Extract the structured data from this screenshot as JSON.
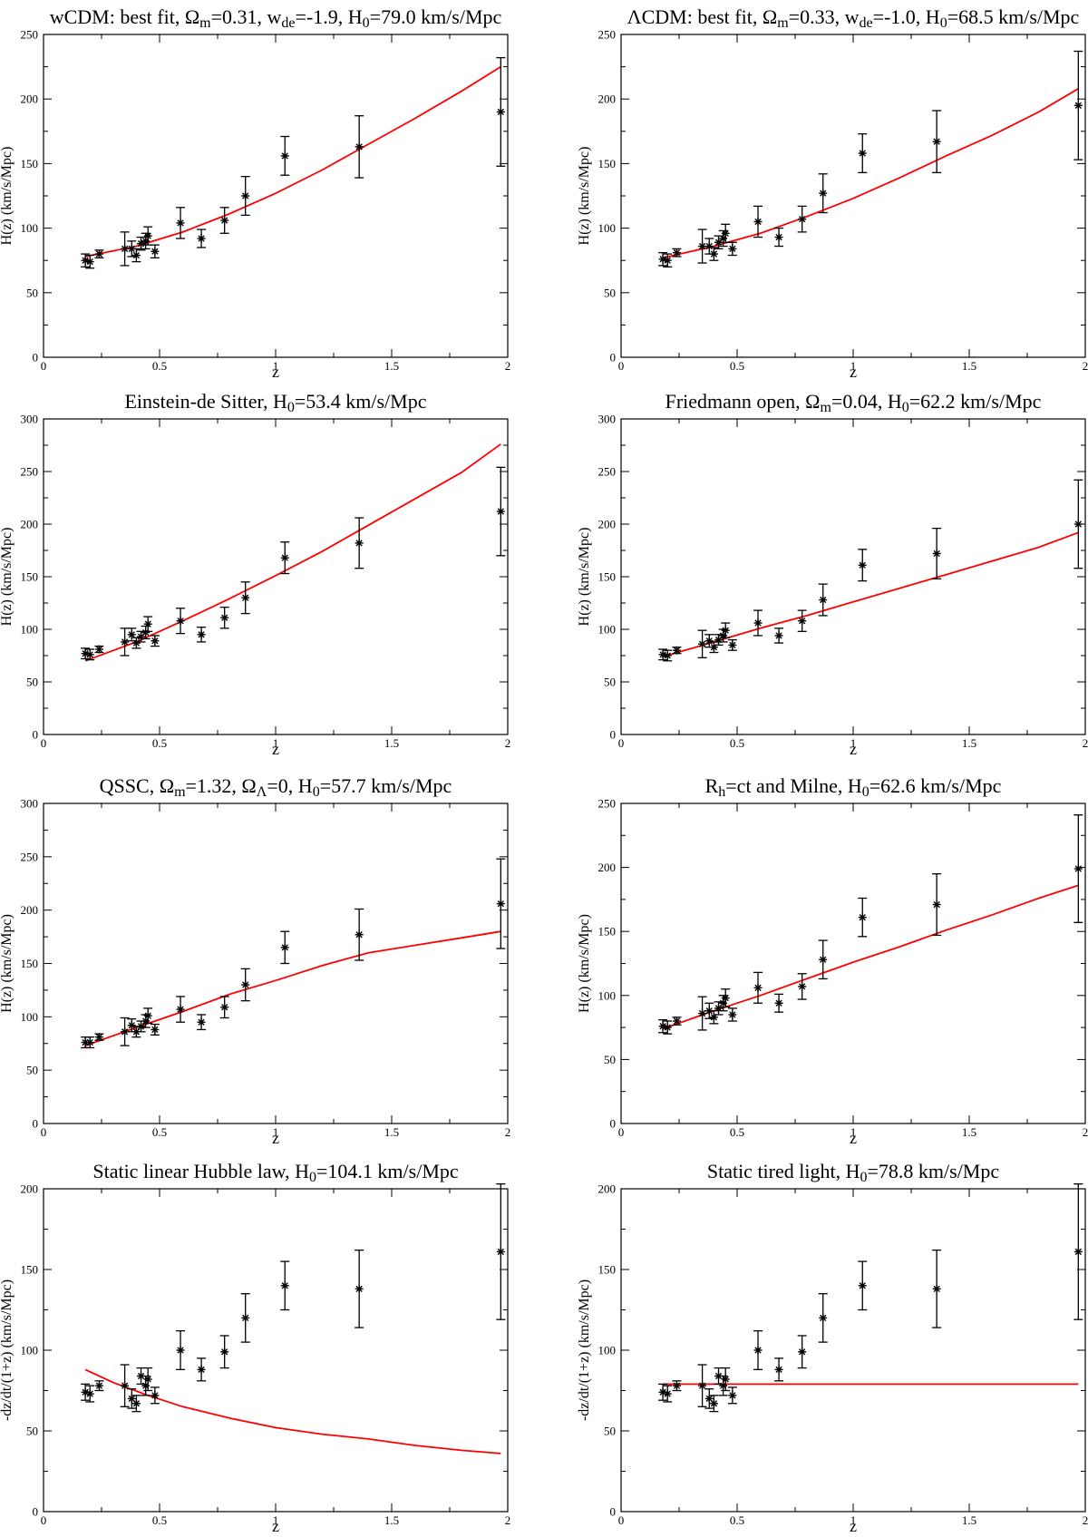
{
  "colors": {
    "model": "#ff0000",
    "data": "#000000",
    "axes": "#000000"
  },
  "chart_data": [
    {
      "type": "scatter",
      "title": "wCDM: best fit, Ωm=0.31, wde=-1.9, H0=79.0 km/s/Mpc",
      "title_parts": [
        [
          "wCDM: best fit, Ω",
          ""
        ],
        [
          "m",
          "sub"
        ],
        [
          "=0.31, w",
          ""
        ],
        [
          "de",
          "sub"
        ],
        [
          "=-1.9, H",
          ""
        ],
        [
          "0",
          "sub"
        ],
        [
          "=79.0 km/s/Mpc",
          ""
        ]
      ],
      "xlabel": "z",
      "ylabel": "H(z) (km/s/Mpc)",
      "xlim": [
        0,
        2
      ],
      "ylim": [
        0,
        250
      ],
      "xticks": [
        0,
        0.5,
        1,
        1.5,
        2
      ],
      "xtick_labels": [
        "0",
        "0.5",
        "1",
        "1.5",
        "2"
      ],
      "yticks": [
        0,
        50,
        100,
        150,
        200,
        250
      ],
      "ytick_labels": [
        "0",
        "50",
        "100",
        "150",
        "200",
        "250"
      ],
      "series": [
        {
          "name": "data",
          "x": [
            0.18,
            0.2,
            0.24,
            0.35,
            0.38,
            0.4,
            0.42,
            0.44,
            0.45,
            0.48,
            0.59,
            0.68,
            0.78,
            0.87,
            1.04,
            1.36,
            1.97
          ],
          "y": [
            75,
            74,
            80,
            84,
            84,
            79,
            88,
            90,
            94,
            82,
            104,
            92,
            106,
            125,
            156,
            163,
            190
          ],
          "err": [
            5,
            5,
            3,
            13,
            6,
            5,
            5,
            6,
            7,
            5,
            12,
            7,
            10,
            15,
            15,
            24,
            42
          ]
        },
        {
          "name": "model",
          "x": [
            0.18,
            0.4,
            0.6,
            0.8,
            1.0,
            1.2,
            1.4,
            1.6,
            1.8,
            1.97
          ],
          "y": [
            78,
            86,
            97,
            111,
            127,
            145,
            165,
            185,
            206,
            225
          ]
        }
      ]
    },
    {
      "type": "scatter",
      "title": "ΛCDM: best fit, Ωm=0.33, wde=-1.0, H0=68.5 km/s/Mpc",
      "title_parts": [
        [
          "ΛCDM: best fit, Ω",
          ""
        ],
        [
          "m",
          "sub"
        ],
        [
          "=0.33, w",
          ""
        ],
        [
          "de",
          "sub"
        ],
        [
          "=-1.0, H",
          ""
        ],
        [
          "0",
          "sub"
        ],
        [
          "=68.5 km/s/Mpc",
          ""
        ]
      ],
      "xlabel": "z",
      "ylabel": "H(z) (km/s/Mpc)",
      "xlim": [
        0,
        2
      ],
      "ylim": [
        0,
        250
      ],
      "xticks": [
        0,
        0.5,
        1,
        1.5,
        2
      ],
      "xtick_labels": [
        "0",
        "0.5",
        "1",
        "1.5",
        "2"
      ],
      "yticks": [
        0,
        50,
        100,
        150,
        200,
        250
      ],
      "ytick_labels": [
        "0",
        "50",
        "100",
        "150",
        "200",
        "250"
      ],
      "series": [
        {
          "name": "data",
          "x": [
            0.18,
            0.2,
            0.24,
            0.35,
            0.38,
            0.4,
            0.42,
            0.44,
            0.45,
            0.48,
            0.59,
            0.68,
            0.78,
            0.87,
            1.04,
            1.36,
            1.97
          ],
          "y": [
            76,
            75,
            81,
            86,
            86,
            80,
            89,
            92,
            96,
            84,
            105,
            93,
            107,
            127,
            158,
            167,
            195
          ],
          "err": [
            5,
            5,
            3,
            13,
            6,
            5,
            5,
            6,
            7,
            5,
            12,
            7,
            10,
            15,
            15,
            24,
            42
          ]
        },
        {
          "name": "model",
          "x": [
            0.18,
            0.4,
            0.6,
            0.8,
            1.0,
            1.2,
            1.4,
            1.6,
            1.8,
            1.97
          ],
          "y": [
            77,
            86,
            96,
            109,
            123,
            139,
            156,
            172,
            190,
            208
          ]
        }
      ]
    },
    {
      "type": "scatter",
      "title": "Einstein-de Sitter, H0=53.4 km/s/Mpc",
      "title_parts": [
        [
          "Einstein-de Sitter, H",
          ""
        ],
        [
          "0",
          "sub"
        ],
        [
          "=53.4 km/s/Mpc",
          ""
        ]
      ],
      "xlabel": "z",
      "ylabel": "H(z) (km/s/Mpc)",
      "xlim": [
        0,
        2
      ],
      "ylim": [
        0,
        300
      ],
      "xticks": [
        0,
        0.5,
        1,
        1.5,
        2
      ],
      "xtick_labels": [
        "0",
        "0.5",
        "1",
        "1.5",
        "2"
      ],
      "yticks": [
        0,
        50,
        100,
        150,
        200,
        250,
        300
      ],
      "ytick_labels": [
        "0",
        "50",
        "100",
        "150",
        "200",
        "250",
        "300"
      ],
      "series": [
        {
          "name": "data",
          "x": [
            0.18,
            0.2,
            0.24,
            0.35,
            0.38,
            0.4,
            0.42,
            0.44,
            0.45,
            0.48,
            0.59,
            0.68,
            0.78,
            0.87,
            1.04,
            1.36,
            1.97
          ],
          "y": [
            77,
            76,
            81,
            88,
            95,
            87,
            93,
            97,
            105,
            89,
            108,
            95,
            111,
            130,
            168,
            182,
            212
          ],
          "err": [
            5,
            5,
            3,
            13,
            6,
            5,
            5,
            6,
            7,
            5,
            12,
            7,
            10,
            15,
            15,
            24,
            42
          ]
        },
        {
          "name": "model",
          "x": [
            0.18,
            0.4,
            0.6,
            0.8,
            1.0,
            1.2,
            1.4,
            1.6,
            1.8,
            1.97
          ],
          "y": [
            70,
            88,
            108,
            129,
            151,
            174,
            199,
            224,
            249,
            276
          ]
        }
      ]
    },
    {
      "type": "scatter",
      "title": "Friedmann open, Ωm=0.04, H0=62.2 km/s/Mpc",
      "title_parts": [
        [
          "Friedmann open, Ω",
          ""
        ],
        [
          "m",
          "sub"
        ],
        [
          "=0.04, H",
          ""
        ],
        [
          "0",
          "sub"
        ],
        [
          "=62.2 km/s/Mpc",
          ""
        ]
      ],
      "xlabel": "z",
      "ylabel": "H(z) (km/s/Mpc)",
      "xlim": [
        0,
        2
      ],
      "ylim": [
        0,
        300
      ],
      "xticks": [
        0,
        0.5,
        1,
        1.5,
        2
      ],
      "xtick_labels": [
        "0",
        "0.5",
        "1",
        "1.5",
        "2"
      ],
      "yticks": [
        0,
        50,
        100,
        150,
        200,
        250,
        300
      ],
      "ytick_labels": [
        "0",
        "50",
        "100",
        "150",
        "200",
        "250",
        "300"
      ],
      "series": [
        {
          "name": "data",
          "x": [
            0.18,
            0.2,
            0.24,
            0.35,
            0.38,
            0.4,
            0.42,
            0.44,
            0.45,
            0.48,
            0.59,
            0.68,
            0.78,
            0.87,
            1.04,
            1.36,
            1.97
          ],
          "y": [
            76,
            75,
            80,
            86,
            89,
            83,
            90,
            94,
            99,
            85,
            106,
            94,
            108,
            128,
            161,
            172,
            200
          ],
          "err": [
            5,
            5,
            3,
            13,
            6,
            5,
            5,
            6,
            7,
            5,
            12,
            7,
            10,
            15,
            15,
            24,
            42
          ]
        },
        {
          "name": "model",
          "x": [
            0.18,
            0.4,
            0.6,
            0.8,
            1.0,
            1.2,
            1.4,
            1.6,
            1.8,
            1.97
          ],
          "y": [
            74,
            88,
            101,
            113,
            126,
            139,
            152,
            165,
            178,
            192
          ]
        }
      ]
    },
    {
      "type": "scatter",
      "title": "QSSC, Ωm=1.32, ΩΛ=0, H0=57.7 km/s/Mpc",
      "title_parts": [
        [
          "QSSC, Ω",
          ""
        ],
        [
          "m",
          "sub"
        ],
        [
          "=1.32, Ω",
          ""
        ],
        [
          "Λ",
          "sub"
        ],
        [
          "=0, H",
          ""
        ],
        [
          "0",
          "sub"
        ],
        [
          "=57.7 km/s/Mpc",
          ""
        ]
      ],
      "xlabel": "z",
      "ylabel": "H(z) (km/s/Mpc)",
      "xlim": [
        0,
        2
      ],
      "ylim": [
        0,
        300
      ],
      "xticks": [
        0,
        0.5,
        1,
        1.5,
        2
      ],
      "xtick_labels": [
        "0",
        "0.5",
        "1",
        "1.5",
        "2"
      ],
      "yticks": [
        0,
        50,
        100,
        150,
        200,
        250,
        300
      ],
      "ytick_labels": [
        "0",
        "50",
        "100",
        "150",
        "200",
        "250",
        "300"
      ],
      "series": [
        {
          "name": "data",
          "x": [
            0.18,
            0.2,
            0.24,
            0.35,
            0.38,
            0.4,
            0.42,
            0.44,
            0.45,
            0.48,
            0.59,
            0.68,
            0.78,
            0.87,
            1.04,
            1.36,
            1.97
          ],
          "y": [
            76,
            76,
            81,
            86,
            92,
            86,
            91,
            96,
            101,
            88,
            107,
            95,
            109,
            130,
            165,
            177,
            206
          ],
          "err": [
            5,
            5,
            3,
            13,
            6,
            5,
            5,
            6,
            7,
            5,
            12,
            7,
            10,
            15,
            15,
            24,
            42
          ]
        },
        {
          "name": "model",
          "x": [
            0.18,
            0.4,
            0.6,
            0.8,
            1.0,
            1.2,
            1.4,
            1.6,
            1.8,
            1.97
          ],
          "y": [
            73,
            90,
            105,
            121,
            134,
            148,
            160,
            167,
            174,
            180
          ]
        }
      ]
    },
    {
      "type": "scatter",
      "title": "Rh=ct and Milne, H0=62.6 km/s/Mpc",
      "title_parts": [
        [
          "R",
          ""
        ],
        [
          "h",
          "sub"
        ],
        [
          "=ct and Milne, H",
          ""
        ],
        [
          "0",
          "sub"
        ],
        [
          "=62.6 km/s/Mpc",
          ""
        ]
      ],
      "xlabel": "z",
      "ylabel": "H(z) (km/s/Mpc)",
      "xlim": [
        0,
        2
      ],
      "ylim": [
        0,
        250
      ],
      "xticks": [
        0,
        0.5,
        1,
        1.5,
        2
      ],
      "xtick_labels": [
        "0",
        "0.5",
        "1",
        "1.5",
        "2"
      ],
      "yticks": [
        0,
        50,
        100,
        150,
        200,
        250
      ],
      "ytick_labels": [
        "0",
        "50",
        "100",
        "150",
        "200",
        "250"
      ],
      "series": [
        {
          "name": "data",
          "x": [
            0.18,
            0.2,
            0.24,
            0.35,
            0.38,
            0.4,
            0.42,
            0.44,
            0.45,
            0.48,
            0.59,
            0.68,
            0.78,
            0.87,
            1.04,
            1.36,
            1.97
          ],
          "y": [
            76,
            75,
            80,
            86,
            88,
            83,
            90,
            94,
            98,
            85,
            106,
            94,
            107,
            128,
            161,
            171,
            199
          ],
          "err": [
            5,
            5,
            3,
            13,
            6,
            5,
            5,
            6,
            7,
            5,
            12,
            7,
            10,
            15,
            15,
            24,
            42
          ]
        },
        {
          "name": "model",
          "x": [
            0.18,
            0.4,
            0.6,
            0.8,
            1.0,
            1.2,
            1.4,
            1.6,
            1.8,
            1.97
          ],
          "y": [
            74,
            88,
            100,
            113,
            126,
            138,
            151,
            163,
            176,
            186
          ]
        }
      ]
    },
    {
      "type": "scatter",
      "title": "Static linear Hubble law, H0=104.1 km/s/Mpc",
      "title_parts": [
        [
          "Static linear Hubble law, H",
          ""
        ],
        [
          "0",
          "sub"
        ],
        [
          "=104.1 km/s/Mpc",
          ""
        ]
      ],
      "xlabel": "z",
      "ylabel": "-dz/dt/(1+z) (km/s/Mpc)",
      "xlim": [
        0,
        2
      ],
      "ylim": [
        0,
        200
      ],
      "xticks": [
        0,
        0.5,
        1,
        1.5,
        2
      ],
      "xtick_labels": [
        "0",
        "0.5",
        "1",
        "1.5",
        "2"
      ],
      "yticks": [
        0,
        50,
        100,
        150,
        200
      ],
      "ytick_labels": [
        "0",
        "50",
        "100",
        "150",
        "200"
      ],
      "series": [
        {
          "name": "data",
          "x": [
            0.18,
            0.2,
            0.24,
            0.35,
            0.38,
            0.4,
            0.42,
            0.44,
            0.45,
            0.48,
            0.59,
            0.68,
            0.78,
            0.87,
            1.04,
            1.36,
            1.97
          ],
          "y": [
            74,
            73,
            78,
            78,
            70,
            67,
            84,
            78,
            82,
            72,
            100,
            88,
            99,
            120,
            140,
            138,
            161
          ],
          "err": [
            5,
            5,
            3,
            13,
            6,
            5,
            5,
            6,
            7,
            5,
            12,
            7,
            10,
            15,
            15,
            24,
            42
          ]
        },
        {
          "name": "model",
          "x": [
            0.18,
            0.3,
            0.45,
            0.6,
            0.8,
            1.0,
            1.2,
            1.4,
            1.6,
            1.8,
            1.97
          ],
          "y": [
            88,
            80,
            72,
            65,
            58,
            52,
            48,
            45,
            41,
            38,
            36
          ]
        }
      ]
    },
    {
      "type": "scatter",
      "title": "Static tired light, H0=78.8 km/s/Mpc",
      "title_parts": [
        [
          "Static tired light, H",
          ""
        ],
        [
          "0",
          "sub"
        ],
        [
          "=78.8 km/s/Mpc",
          ""
        ]
      ],
      "xlabel": "z",
      "ylabel": "-dz/dt/(1+z) (km/s/Mpc)",
      "xlim": [
        0,
        2
      ],
      "ylim": [
        0,
        200
      ],
      "xticks": [
        0,
        0.5,
        1,
        1.5,
        2
      ],
      "xtick_labels": [
        "0",
        "0.5",
        "1",
        "1.5",
        "2"
      ],
      "yticks": [
        0,
        50,
        100,
        150,
        200
      ],
      "ytick_labels": [
        "0",
        "50",
        "100",
        "150",
        "200"
      ],
      "series": [
        {
          "name": "data",
          "x": [
            0.18,
            0.2,
            0.24,
            0.35,
            0.38,
            0.4,
            0.42,
            0.44,
            0.45,
            0.48,
            0.59,
            0.68,
            0.78,
            0.87,
            1.04,
            1.36,
            1.97
          ],
          "y": [
            74,
            73,
            78,
            78,
            70,
            67,
            84,
            78,
            82,
            72,
            100,
            88,
            99,
            120,
            140,
            138,
            161
          ],
          "err": [
            5,
            5,
            3,
            13,
            6,
            5,
            5,
            6,
            7,
            5,
            12,
            7,
            10,
            15,
            15,
            24,
            42
          ]
        },
        {
          "name": "model",
          "x": [
            0.18,
            1.97
          ],
          "y": [
            79,
            79
          ]
        }
      ]
    }
  ]
}
